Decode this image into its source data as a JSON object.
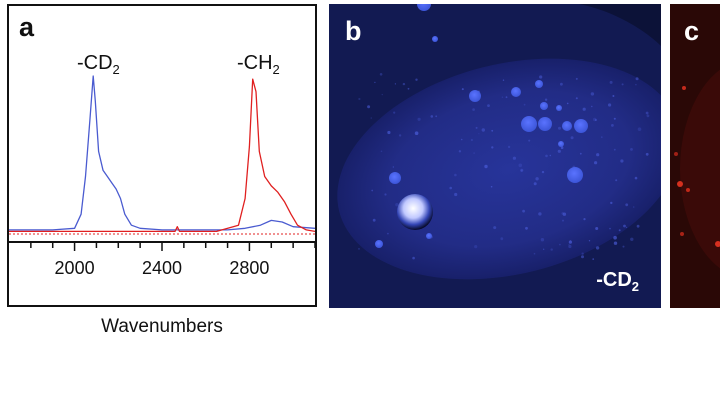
{
  "panel_a": {
    "letter": "a",
    "peak_cd2": {
      "text": "-CD",
      "sub": "2"
    },
    "peak_ch2": {
      "text": "-CH",
      "sub": "2"
    },
    "xlabel": "Wavenumbers",
    "colors": {
      "cd2_trace": "#4a5bd0",
      "ch2_trace": "#e02020"
    }
  },
  "panel_b": {
    "letter": "b",
    "label": {
      "text": "-CD",
      "sub": "2"
    }
  },
  "panel_c": {
    "letter": "c"
  },
  "chart_data": {
    "type": "line",
    "xlabel": "Wavenumbers",
    "ylabel": "",
    "xlim": [
      1700,
      3100
    ],
    "x_ticks": [
      2000,
      2400,
      2800
    ],
    "grid": false,
    "series": [
      {
        "name": "-CD2",
        "color": "#4a5bd0",
        "x": [
          1700,
          1900,
          2000,
          2030,
          2050,
          2070,
          2085,
          2095,
          2110,
          2130,
          2150,
          2170,
          2190,
          2210,
          2230,
          2260,
          2300,
          2400,
          2700,
          2780,
          2850,
          2900,
          2950,
          3000,
          3100
        ],
        "y": [
          0.02,
          0.02,
          0.03,
          0.12,
          0.36,
          0.72,
          1.0,
          0.84,
          0.52,
          0.4,
          0.36,
          0.32,
          0.28,
          0.22,
          0.12,
          0.05,
          0.03,
          0.02,
          0.02,
          0.03,
          0.05,
          0.08,
          0.07,
          0.04,
          0.03
        ]
      },
      {
        "name": "-CH2",
        "color": "#e02020",
        "x": [
          1700,
          2000,
          2460,
          2470,
          2480,
          2650,
          2750,
          2780,
          2800,
          2815,
          2830,
          2845,
          2870,
          2900,
          2930,
          2960,
          2990,
          3020,
          3060,
          3100
        ],
        "y": [
          0.01,
          0.01,
          0.01,
          0.04,
          0.01,
          0.01,
          0.05,
          0.22,
          0.55,
          0.98,
          0.9,
          0.52,
          0.36,
          0.3,
          0.26,
          0.2,
          0.12,
          0.05,
          0.02,
          0.01
        ]
      }
    ]
  }
}
